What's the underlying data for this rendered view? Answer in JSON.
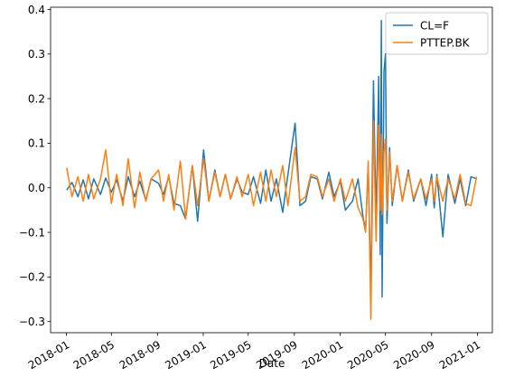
{
  "chart_data": {
    "type": "line",
    "xlabel": "Date",
    "ylabel": "",
    "title": "",
    "x_range": [
      "2017-11-20",
      "2021-02-10"
    ],
    "ylim": [
      -0.325,
      0.405
    ],
    "x_ticks": [
      {
        "date": "2018-01-01",
        "label": "2018-01"
      },
      {
        "date": "2018-05-01",
        "label": "2018-05"
      },
      {
        "date": "2018-09-01",
        "label": "2018-09"
      },
      {
        "date": "2019-01-01",
        "label": "2019-01"
      },
      {
        "date": "2019-05-01",
        "label": "2019-05"
      },
      {
        "date": "2019-09-01",
        "label": "2019-09"
      },
      {
        "date": "2020-01-01",
        "label": "2020-01"
      },
      {
        "date": "2020-05-01",
        "label": "2020-05"
      },
      {
        "date": "2020-09-01",
        "label": "2020-09"
      },
      {
        "date": "2021-01-01",
        "label": "2021-01"
      }
    ],
    "y_ticks": [
      {
        "value": 0.4,
        "label": "0.4"
      },
      {
        "value": 0.3,
        "label": "0.3"
      },
      {
        "value": 0.2,
        "label": "0.2"
      },
      {
        "value": 0.1,
        "label": "0.1"
      },
      {
        "value": 0.0,
        "label": "0.0"
      },
      {
        "value": -0.1,
        "label": "−0.1"
      },
      {
        "value": -0.2,
        "label": "−0.2"
      },
      {
        "value": -0.3,
        "label": "−0.3"
      }
    ],
    "grid": false,
    "legend_position": "top-right",
    "series": [
      {
        "name": "CL=F",
        "color": "#1f77b4",
        "x": [
          "2018-01-02",
          "2018-01-16",
          "2018-02-01",
          "2018-02-15",
          "2018-03-01",
          "2018-03-15",
          "2018-04-02",
          "2018-04-16",
          "2018-05-01",
          "2018-05-15",
          "2018-06-01",
          "2018-06-15",
          "2018-07-02",
          "2018-07-16",
          "2018-08-01",
          "2018-08-15",
          "2018-09-04",
          "2018-09-17",
          "2018-10-01",
          "2018-10-15",
          "2018-11-01",
          "2018-11-15",
          "2018-12-03",
          "2018-12-17",
          "2019-01-02",
          "2019-01-16",
          "2019-02-01",
          "2019-02-15",
          "2019-03-01",
          "2019-03-15",
          "2019-04-01",
          "2019-04-15",
          "2019-05-01",
          "2019-05-15",
          "2019-06-03",
          "2019-06-17",
          "2019-07-01",
          "2019-07-15",
          "2019-08-01",
          "2019-08-15",
          "2019-09-03",
          "2019-09-16",
          "2019-10-01",
          "2019-10-15",
          "2019-11-01",
          "2019-11-15",
          "2019-12-02",
          "2019-12-16",
          "2020-01-02",
          "2020-01-15",
          "2020-02-03",
          "2020-02-18",
          "2020-03-02",
          "2020-03-09",
          "2020-03-16",
          "2020-03-23",
          "2020-03-30",
          "2020-04-06",
          "2020-04-13",
          "2020-04-17",
          "2020-04-20",
          "2020-04-22",
          "2020-04-27",
          "2020-05-01",
          "2020-05-05",
          "2020-05-12",
          "2020-05-19",
          "2020-06-01",
          "2020-06-15",
          "2020-07-01",
          "2020-07-15",
          "2020-08-03",
          "2020-08-17",
          "2020-09-01",
          "2020-09-08",
          "2020-09-15",
          "2020-10-01",
          "2020-10-15",
          "2020-11-02",
          "2020-11-16",
          "2020-12-01",
          "2020-12-15",
          "2020-12-30"
        ],
        "values": [
          -0.005,
          0.012,
          -0.02,
          0.018,
          -0.025,
          0.02,
          -0.015,
          0.022,
          -0.01,
          0.018,
          -0.03,
          0.025,
          -0.02,
          0.015,
          -0.028,
          0.02,
          0.01,
          -0.015,
          0.025,
          -0.035,
          -0.04,
          -0.07,
          0.05,
          -0.075,
          0.085,
          -0.03,
          0.04,
          -0.02,
          0.03,
          -0.025,
          0.02,
          -0.01,
          -0.015,
          0.025,
          -0.035,
          0.04,
          -0.03,
          0.02,
          -0.055,
          0.03,
          0.145,
          -0.04,
          -0.03,
          0.025,
          0.02,
          -0.025,
          0.035,
          -0.02,
          0.015,
          -0.05,
          -0.03,
          0.02,
          -0.065,
          -0.095,
          0.05,
          -0.24,
          0.24,
          -0.08,
          0.25,
          -0.15,
          0.375,
          -0.245,
          0.26,
          0.3,
          -0.08,
          0.09,
          -0.04,
          0.05,
          -0.03,
          0.04,
          -0.03,
          0.02,
          -0.04,
          0.03,
          -0.045,
          0.03,
          -0.11,
          0.03,
          -0.035,
          0.02,
          -0.04,
          0.025,
          0.02
        ]
      },
      {
        "name": "PTTEP.BK",
        "color": "#ff7f0e",
        "x": [
          "2018-01-02",
          "2018-01-16",
          "2018-02-01",
          "2018-02-15",
          "2018-03-01",
          "2018-03-15",
          "2018-04-02",
          "2018-04-16",
          "2018-05-01",
          "2018-05-15",
          "2018-06-01",
          "2018-06-15",
          "2018-07-02",
          "2018-07-16",
          "2018-08-01",
          "2018-08-15",
          "2018-09-04",
          "2018-09-17",
          "2018-10-01",
          "2018-10-15",
          "2018-11-01",
          "2018-11-15",
          "2018-12-03",
          "2018-12-17",
          "2019-01-02",
          "2019-01-16",
          "2019-02-01",
          "2019-02-15",
          "2019-03-01",
          "2019-03-15",
          "2019-04-01",
          "2019-04-15",
          "2019-05-01",
          "2019-05-15",
          "2019-06-03",
          "2019-06-17",
          "2019-07-01",
          "2019-07-15",
          "2019-08-01",
          "2019-08-15",
          "2019-09-03",
          "2019-09-16",
          "2019-10-01",
          "2019-10-15",
          "2019-11-01",
          "2019-11-15",
          "2019-12-02",
          "2019-12-16",
          "2020-01-02",
          "2020-01-15",
          "2020-02-03",
          "2020-02-18",
          "2020-03-02",
          "2020-03-09",
          "2020-03-16",
          "2020-03-23",
          "2020-03-30",
          "2020-04-06",
          "2020-04-13",
          "2020-04-17",
          "2020-04-20",
          "2020-04-22",
          "2020-04-27",
          "2020-05-01",
          "2020-05-05",
          "2020-05-12",
          "2020-05-19",
          "2020-06-01",
          "2020-06-15",
          "2020-07-01",
          "2020-07-15",
          "2020-08-03",
          "2020-08-17",
          "2020-09-01",
          "2020-09-08",
          "2020-09-15",
          "2020-10-01",
          "2020-10-15",
          "2020-11-02",
          "2020-11-16",
          "2020-12-01",
          "2020-12-15",
          "2020-12-30"
        ],
        "values": [
          0.045,
          -0.02,
          0.025,
          -0.03,
          0.03,
          -0.025,
          0.02,
          0.085,
          -0.035,
          0.03,
          -0.04,
          0.065,
          -0.045,
          0.035,
          -0.03,
          0.02,
          0.04,
          -0.03,
          0.03,
          -0.05,
          0.06,
          -0.07,
          0.05,
          -0.04,
          0.065,
          -0.03,
          0.035,
          -0.02,
          0.03,
          -0.025,
          0.025,
          -0.02,
          0.03,
          -0.04,
          0.035,
          -0.03,
          0.04,
          -0.02,
          0.05,
          -0.04,
          0.09,
          -0.03,
          -0.02,
          0.03,
          0.025,
          -0.02,
          0.02,
          -0.03,
          0.02,
          -0.03,
          0.02,
          -0.045,
          -0.07,
          -0.1,
          0.06,
          -0.295,
          0.15,
          -0.12,
          0.14,
          -0.05,
          0.12,
          -0.06,
          0.08,
          0.11,
          -0.05,
          0.08,
          -0.03,
          0.05,
          -0.03,
          0.035,
          -0.025,
          0.02,
          -0.025,
          0.02,
          -0.03,
          0.025,
          -0.03,
          0.02,
          -0.025,
          0.03,
          -0.035,
          -0.04,
          0.025
        ]
      }
    ]
  }
}
